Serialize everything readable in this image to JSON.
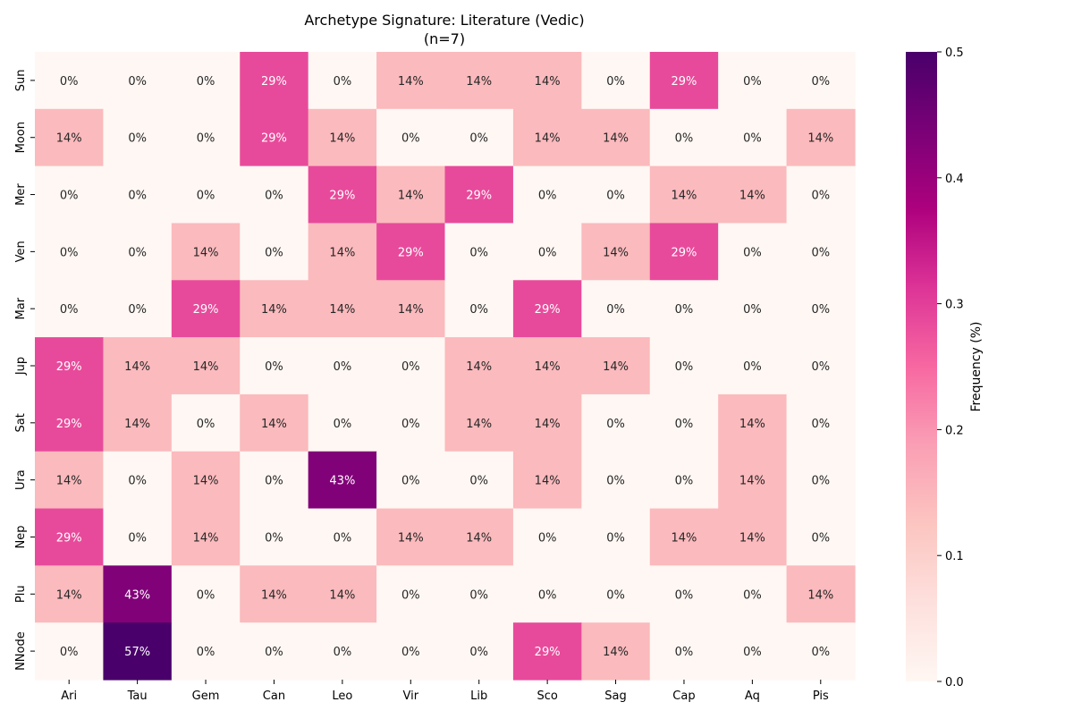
{
  "chart_data": {
    "type": "heatmap",
    "title_line1": "Archetype Signature: Literature (Vedic)",
    "title_line2": "(n=7)",
    "x_categories": [
      "Ari",
      "Tau",
      "Gem",
      "Can",
      "Leo",
      "Vir",
      "Lib",
      "Sco",
      "Sag",
      "Cap",
      "Aq",
      "Pis"
    ],
    "y_categories": [
      "Sun",
      "Moon",
      "Mer",
      "Ven",
      "Mar",
      "Jup",
      "Sat",
      "Ura",
      "Nep",
      "Plu",
      "NNode"
    ],
    "values": [
      [
        0,
        0,
        0,
        0.2857,
        0,
        0.1429,
        0.1429,
        0.1429,
        0,
        0.2857,
        0,
        0
      ],
      [
        0.1429,
        0,
        0,
        0.2857,
        0.1429,
        0,
        0,
        0.1429,
        0.1429,
        0,
        0,
        0.1429
      ],
      [
        0,
        0,
        0,
        0,
        0.2857,
        0.1429,
        0.2857,
        0,
        0,
        0.1429,
        0.1429,
        0
      ],
      [
        0,
        0,
        0.1429,
        0,
        0.1429,
        0.2857,
        0,
        0,
        0.1429,
        0.2857,
        0,
        0
      ],
      [
        0,
        0,
        0.2857,
        0.1429,
        0.1429,
        0.1429,
        0,
        0.2857,
        0,
        0,
        0,
        0
      ],
      [
        0.2857,
        0.1429,
        0.1429,
        0,
        0,
        0,
        0.1429,
        0.1429,
        0.1429,
        0,
        0,
        0
      ],
      [
        0.2857,
        0.1429,
        0,
        0.1429,
        0,
        0,
        0.1429,
        0.1429,
        0,
        0,
        0.1429,
        0
      ],
      [
        0.1429,
        0,
        0.1429,
        0,
        0.4286,
        0,
        0,
        0.1429,
        0,
        0,
        0.1429,
        0
      ],
      [
        0.2857,
        0,
        0.1429,
        0,
        0,
        0.1429,
        0.1429,
        0,
        0,
        0.1429,
        0.1429,
        0
      ],
      [
        0.1429,
        0.4286,
        0,
        0.1429,
        0.1429,
        0,
        0,
        0,
        0,
        0,
        0,
        0.1429
      ],
      [
        0,
        0.5714,
        0,
        0,
        0,
        0,
        0,
        0.2857,
        0.1429,
        0,
        0,
        0
      ]
    ],
    "annotations": [
      [
        "0%",
        "0%",
        "0%",
        "29%",
        "0%",
        "14%",
        "14%",
        "14%",
        "0%",
        "29%",
        "0%",
        "0%"
      ],
      [
        "14%",
        "0%",
        "0%",
        "29%",
        "14%",
        "0%",
        "0%",
        "14%",
        "14%",
        "0%",
        "0%",
        "14%"
      ],
      [
        "0%",
        "0%",
        "0%",
        "0%",
        "29%",
        "14%",
        "29%",
        "0%",
        "0%",
        "14%",
        "14%",
        "0%"
      ],
      [
        "0%",
        "0%",
        "14%",
        "0%",
        "14%",
        "29%",
        "0%",
        "0%",
        "14%",
        "29%",
        "0%",
        "0%"
      ],
      [
        "0%",
        "0%",
        "29%",
        "14%",
        "14%",
        "14%",
        "0%",
        "29%",
        "0%",
        "0%",
        "0%",
        "0%"
      ],
      [
        "29%",
        "14%",
        "14%",
        "0%",
        "0%",
        "0%",
        "14%",
        "14%",
        "14%",
        "0%",
        "0%",
        "0%"
      ],
      [
        "29%",
        "14%",
        "0%",
        "14%",
        "0%",
        "0%",
        "14%",
        "14%",
        "0%",
        "0%",
        "14%",
        "0%"
      ],
      [
        "14%",
        "0%",
        "14%",
        "0%",
        "43%",
        "0%",
        "0%",
        "14%",
        "0%",
        "0%",
        "14%",
        "0%"
      ],
      [
        "29%",
        "0%",
        "14%",
        "0%",
        "0%",
        "14%",
        "14%",
        "0%",
        "0%",
        "14%",
        "14%",
        "0%"
      ],
      [
        "14%",
        "43%",
        "0%",
        "14%",
        "14%",
        "0%",
        "0%",
        "0%",
        "0%",
        "0%",
        "0%",
        "14%"
      ],
      [
        "0%",
        "57%",
        "0%",
        "0%",
        "0%",
        "0%",
        "0%",
        "29%",
        "14%",
        "0%",
        "0%",
        "0%"
      ]
    ],
    "colorbar": {
      "label": "Frequency (%)",
      "vmin": 0,
      "vmax": 0.5,
      "ticks": [
        0.0,
        0.1,
        0.2,
        0.3,
        0.4,
        0.5
      ],
      "tick_labels": [
        "0.0",
        "0.1",
        "0.2",
        "0.3",
        "0.4",
        "0.5"
      ],
      "colormap": "RdPu",
      "color_stops": [
        "#fff7f3",
        "#fde0dd",
        "#fcc5c0",
        "#fa9fb5",
        "#f768a1",
        "#dd3497",
        "#ae017e",
        "#7a0177",
        "#49006a"
      ]
    }
  }
}
